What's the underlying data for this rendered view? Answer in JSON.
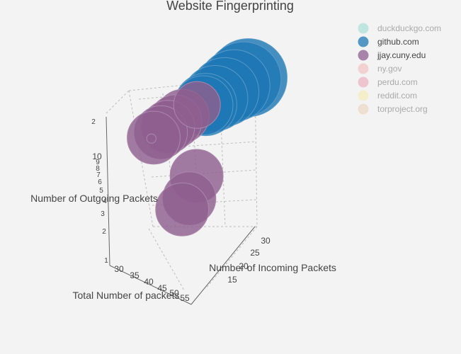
{
  "chart_data": {
    "type": "scatter3d",
    "title": "Website Fingerprinting",
    "axes": {
      "x": {
        "label": "Total Number of packets",
        "ticks": [
          "30",
          "35",
          "40",
          "45",
          "50",
          "55"
        ]
      },
      "y": {
        "label": "Number of Incoming Packets",
        "ticks": [
          "15",
          "20",
          "25",
          "30"
        ]
      },
      "z": {
        "label": "Number of Outgoing Packets",
        "ticks": [
          "1",
          "2",
          "3",
          "4",
          "5",
          "6",
          "7",
          "8",
          "9",
          "10",
          "2"
        ]
      }
    },
    "series": [
      {
        "name": "duckduckgo.com",
        "color": "#7fd5c9",
        "visible": false,
        "points": []
      },
      {
        "name": "github.com",
        "color": "#1f77b4",
        "visible": true,
        "points": [
          {
            "x": 52,
            "y": 30,
            "z": 10,
            "size": 50
          },
          {
            "x": 50,
            "y": 30,
            "z": 10,
            "size": 48
          },
          {
            "x": 48,
            "y": 29,
            "z": 10,
            "size": 46
          },
          {
            "x": 46,
            "y": 28,
            "z": 10,
            "size": 44
          },
          {
            "x": 44,
            "y": 27,
            "z": 10,
            "size": 42
          },
          {
            "x": 42,
            "y": 26,
            "z": 10,
            "size": 40
          },
          {
            "x": 41,
            "y": 26,
            "z": 10,
            "size": 38
          }
        ]
      },
      {
        "name": "jjay.cuny.edu",
        "color": "#8f5f8f",
        "visible": true,
        "points": [
          {
            "x": 36,
            "y": 27,
            "z": 10,
            "size": 30
          },
          {
            "x": 34,
            "y": 25,
            "z": 10,
            "size": 34
          },
          {
            "x": 33,
            "y": 24,
            "z": 10,
            "size": 34
          },
          {
            "x": 32,
            "y": 23,
            "z": 10,
            "size": 34
          },
          {
            "x": 31,
            "y": 22,
            "z": 10,
            "size": 34
          },
          {
            "x": 30,
            "y": 21,
            "z": 10,
            "size": 34
          },
          {
            "x": 29,
            "y": 21,
            "z": 10,
            "size": 6
          },
          {
            "x": 38,
            "y": 26,
            "z": 4,
            "size": 34
          },
          {
            "x": 37,
            "y": 25,
            "z": 2.5,
            "size": 34
          },
          {
            "x": 36,
            "y": 24,
            "z": 2,
            "size": 34
          }
        ]
      },
      {
        "name": "ny.gov",
        "color": "#f4a9ae",
        "visible": false,
        "points": []
      },
      {
        "name": "perdu.com",
        "color": "#e58fa8",
        "visible": false,
        "points": []
      },
      {
        "name": "reddit.com",
        "color": "#f6e89c",
        "visible": false,
        "points": []
      },
      {
        "name": "torproject.org",
        "color": "#e6c9a8",
        "visible": false,
        "points": []
      }
    ],
    "legend": {
      "position": "top-right"
    }
  }
}
